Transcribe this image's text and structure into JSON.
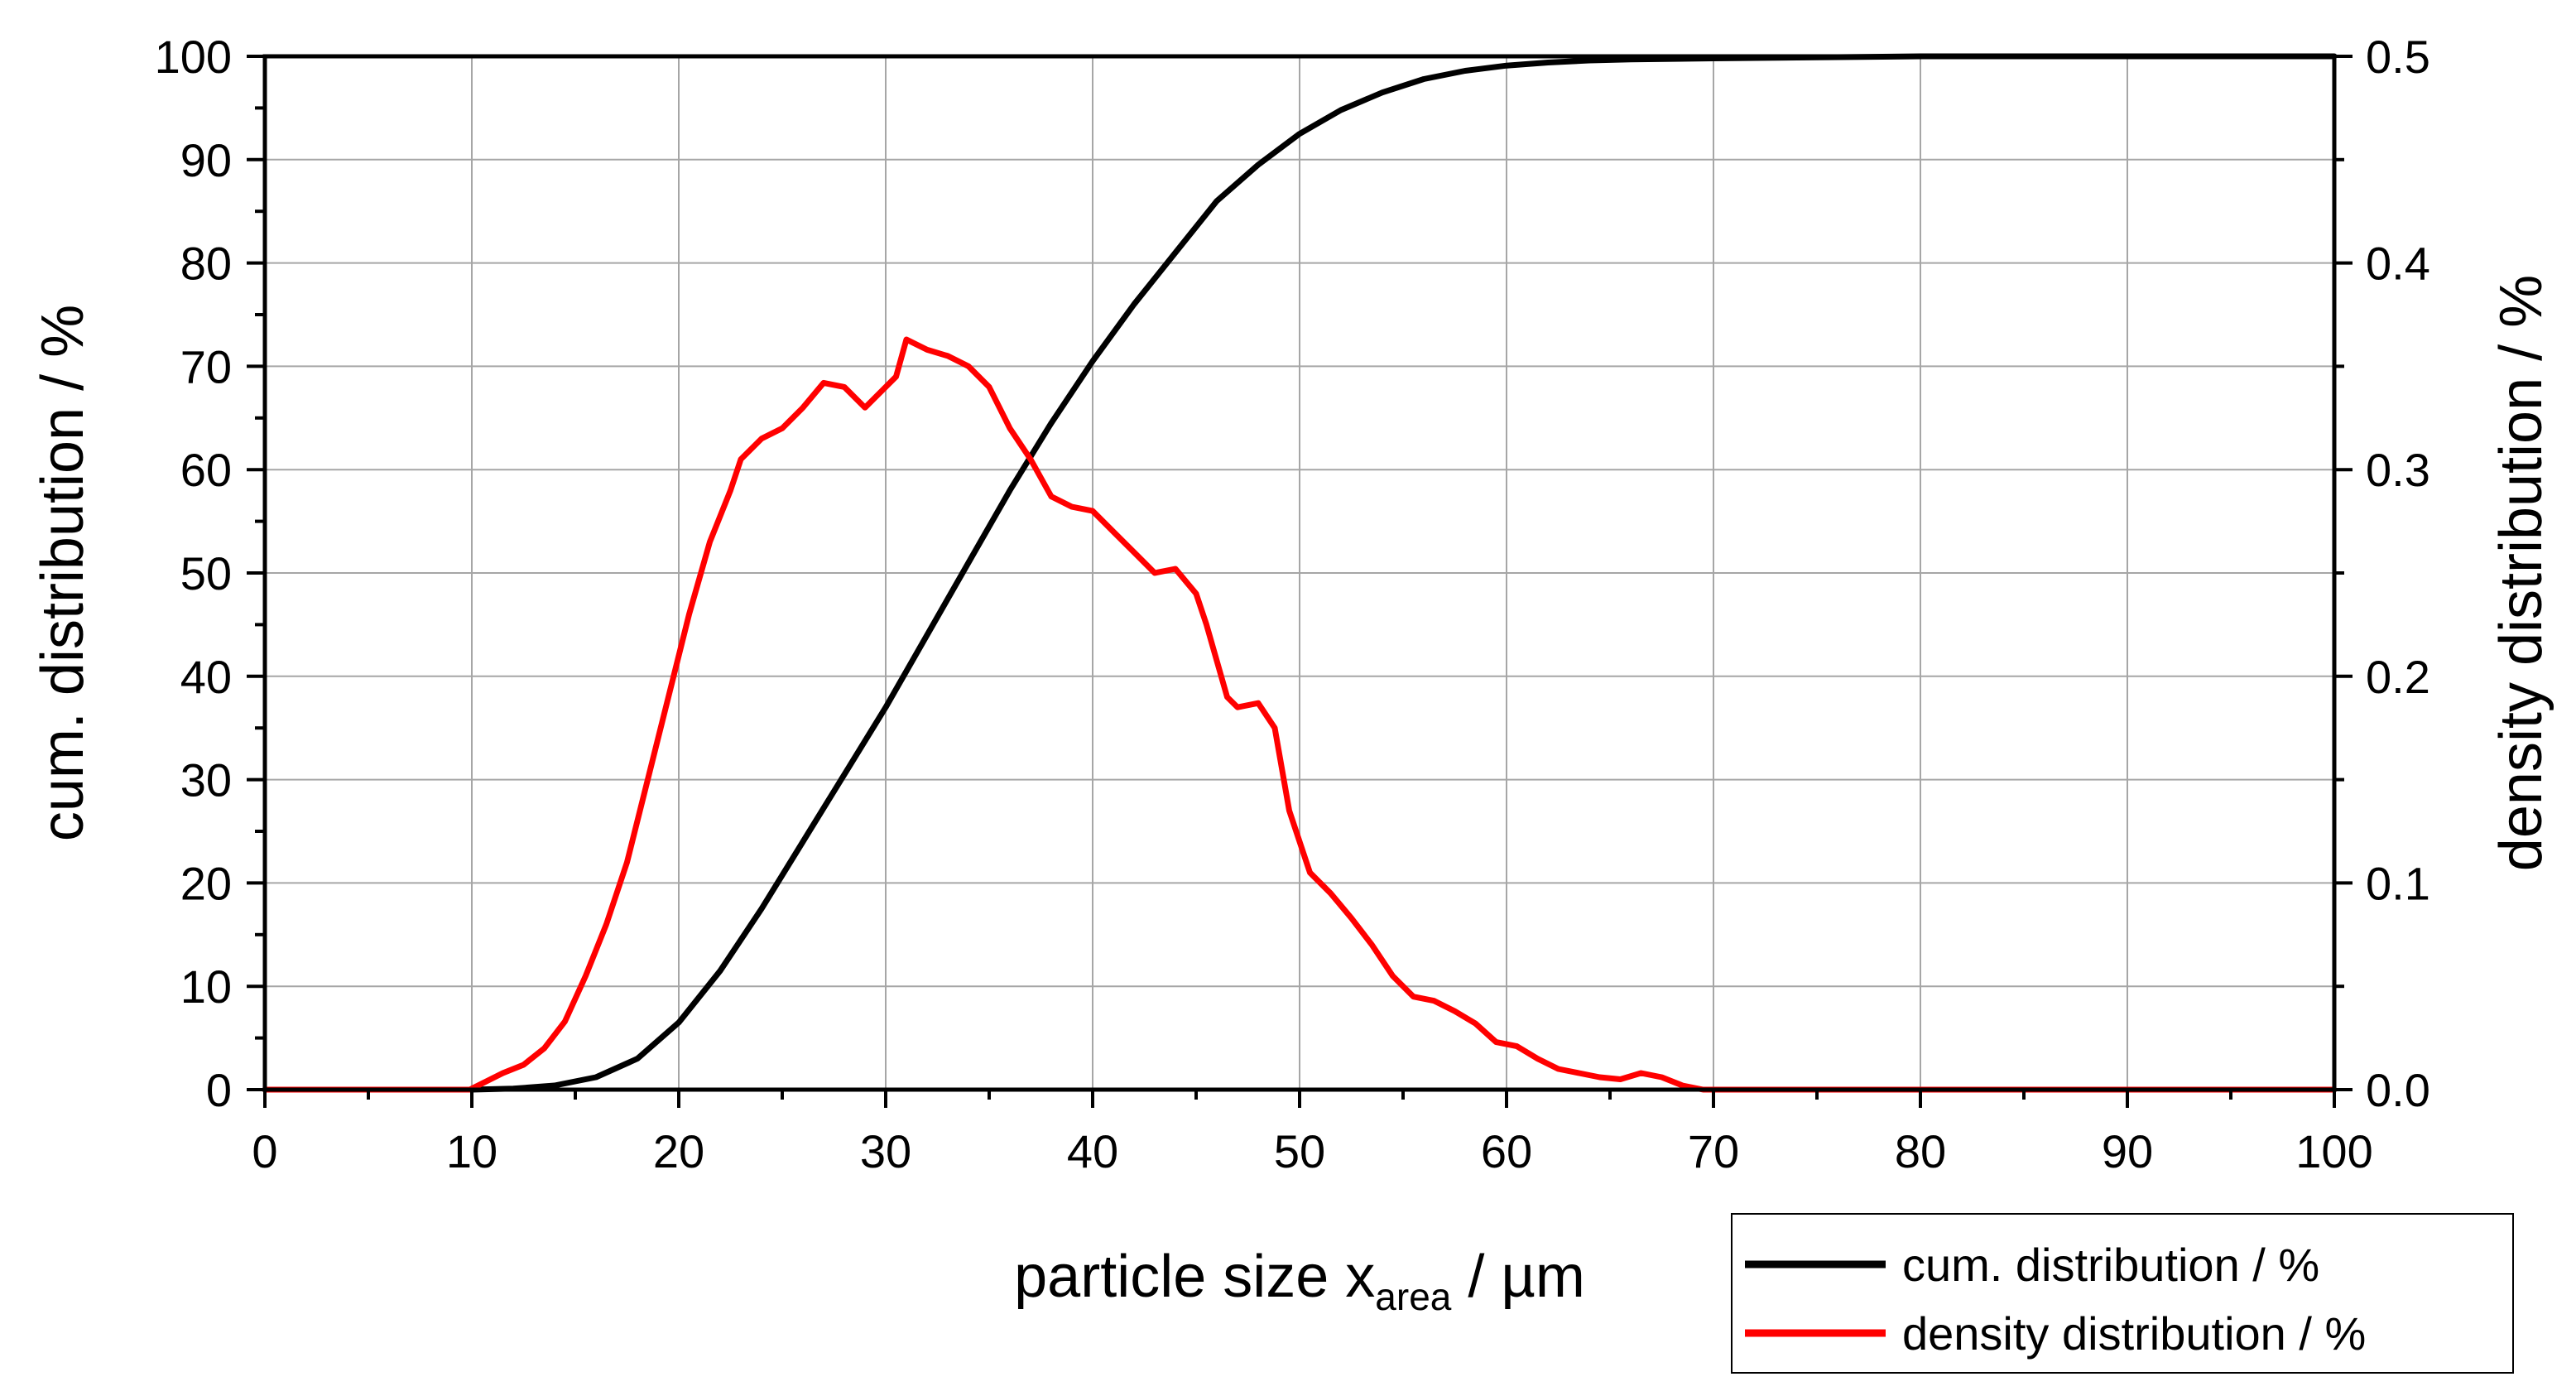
{
  "chart_data": {
    "type": "line",
    "xlabel_main": "particle size x",
    "xlabel_sub": "area",
    "xlabel_suffix": " / µm",
    "ylabel_left": "cum. distribution / %",
    "ylabel_right": "density distribution / %",
    "xlim": [
      0,
      100
    ],
    "ylim_left": [
      0,
      100
    ],
    "ylim_right": [
      0,
      0.5
    ],
    "x_ticks": [
      "0",
      "10",
      "20",
      "30",
      "40",
      "50",
      "60",
      "70",
      "80",
      "90",
      "100"
    ],
    "y_left_ticks": [
      "0",
      "10",
      "20",
      "30",
      "40",
      "50",
      "60",
      "70",
      "80",
      "90",
      "100"
    ],
    "y_right_ticks": [
      "0.0",
      "0.1",
      "0.2",
      "0.3",
      "0.4",
      "0.5"
    ],
    "grid": true,
    "legend_position": "bottom-right-outside",
    "series": [
      {
        "name": "cum. distribution / %",
        "axis": "left",
        "color": "#000000",
        "x": [
          0,
          5,
          10,
          12,
          14,
          16,
          18,
          20,
          22,
          24,
          26,
          28,
          30,
          32,
          34,
          36,
          38,
          40,
          42,
          44,
          46,
          48,
          50,
          52,
          54,
          56,
          58,
          60,
          62,
          64,
          66,
          70,
          75,
          80,
          90,
          100
        ],
        "values": [
          0,
          0,
          0,
          0.1,
          0.4,
          1.2,
          3,
          6.5,
          11.5,
          17.5,
          24,
          30.5,
          37,
          44,
          51,
          58,
          64.5,
          70.5,
          76,
          81,
          86,
          89.5,
          92.5,
          94.8,
          96.5,
          97.8,
          98.6,
          99.1,
          99.4,
          99.6,
          99.7,
          99.8,
          99.9,
          100,
          100,
          100
        ]
      },
      {
        "name": "density distribution / %",
        "axis": "right",
        "color": "#ff0000",
        "x": [
          0,
          9.9,
          10.5,
          11.5,
          12.5,
          13.5,
          14.5,
          15.5,
          16.5,
          17.5,
          18.5,
          19.5,
          20.5,
          21.5,
          22.5,
          23,
          24,
          25,
          26,
          27,
          28,
          29,
          29.5,
          30.5,
          31,
          32,
          33,
          34,
          35,
          36,
          37,
          38,
          39,
          40,
          41,
          42,
          43,
          44,
          45,
          45.5,
          46.5,
          47,
          48,
          48.8,
          49.5,
          50.5,
          51.5,
          52.5,
          53.5,
          54.5,
          55.5,
          56.5,
          57.5,
          58.5,
          59.5,
          60.5,
          61.5,
          62.5,
          63.5,
          64.5,
          65.5,
          66.5,
          67.5,
          68.5,
          69.5,
          75,
          85,
          100
        ],
        "values": [
          0,
          0,
          0.003,
          0.008,
          0.012,
          0.02,
          0.033,
          0.055,
          0.08,
          0.11,
          0.15,
          0.19,
          0.23,
          0.265,
          0.29,
          0.305,
          0.315,
          0.32,
          0.33,
          0.342,
          0.34,
          0.33,
          0.335,
          0.345,
          0.363,
          0.358,
          0.355,
          0.35,
          0.34,
          0.32,
          0.305,
          0.287,
          0.282,
          0.28,
          0.27,
          0.26,
          0.25,
          0.252,
          0.24,
          0.225,
          0.19,
          0.185,
          0.187,
          0.175,
          0.135,
          0.105,
          0.095,
          0.083,
          0.07,
          0.055,
          0.045,
          0.043,
          0.038,
          0.032,
          0.023,
          0.021,
          0.015,
          0.01,
          0.008,
          0.006,
          0.005,
          0.008,
          0.006,
          0.002,
          0,
          0,
          0,
          0
        ]
      }
    ]
  }
}
